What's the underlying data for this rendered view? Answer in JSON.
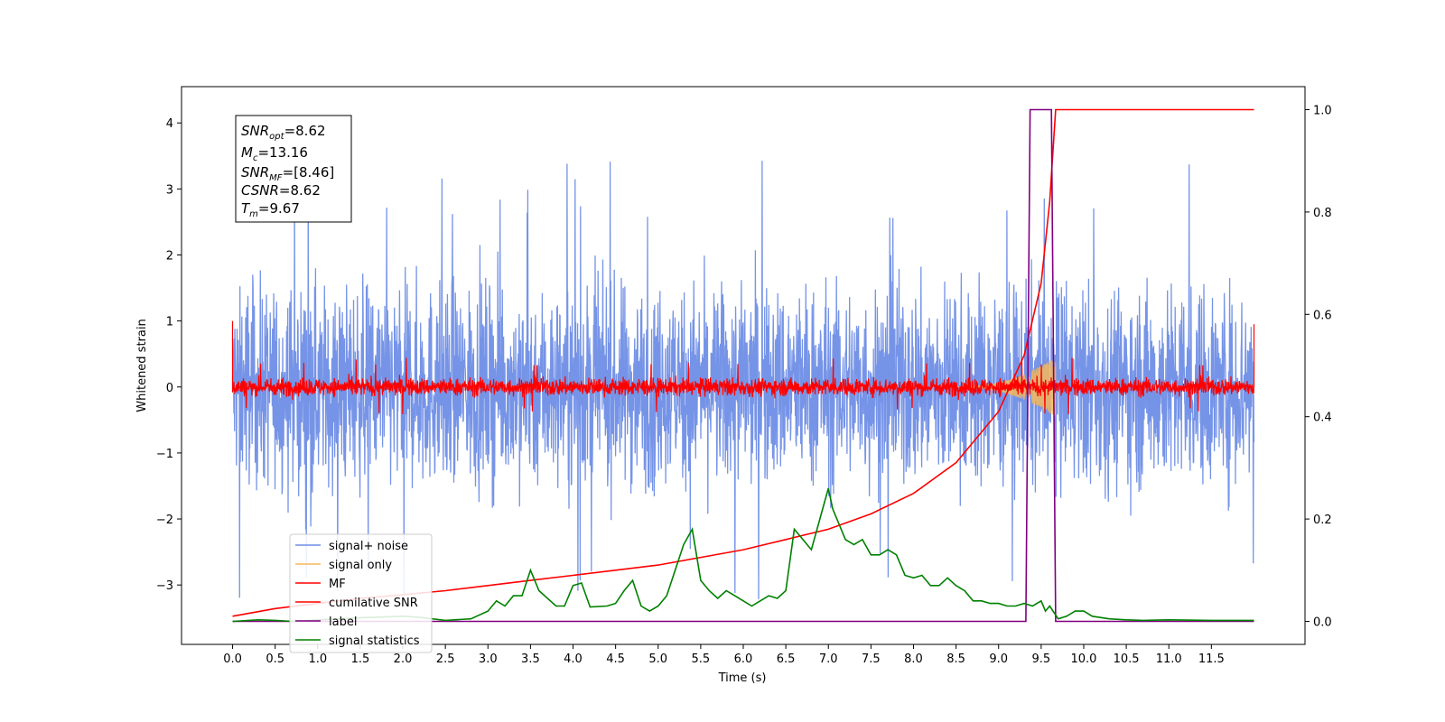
{
  "chart_data": {
    "type": "line",
    "xlabel": "Time (s)",
    "ylabel": "Whitened strain",
    "x_ticks": [
      "0.0",
      "0.5",
      "1.0",
      "1.5",
      "2.0",
      "2.5",
      "3.0",
      "3.5",
      "4.0",
      "4.5",
      "5.0",
      "5.5",
      "6.0",
      "6.5",
      "7.0",
      "7.5",
      "8.0",
      "8.5",
      "9.0",
      "9.5",
      "10.0",
      "10.5",
      "11.0",
      "11.5"
    ],
    "y_ticks_left": [
      "4",
      "3",
      "2",
      "1",
      "0",
      "−1",
      "−2",
      "−3"
    ],
    "y_ticks_right": [
      "1.0",
      "0.8",
      "0.6",
      "0.4",
      "0.2",
      "0.0"
    ],
    "xlim": [
      -0.6,
      12.6
    ],
    "ylim_left": [
      -3.9,
      4.55
    ],
    "ylim_right": [
      -0.045,
      1.045
    ],
    "grid": false,
    "legend_position": "lower-left",
    "annotation": {
      "lines": [
        {
          "sym": "SNR",
          "sub": "opt",
          "val": "=8.62"
        },
        {
          "sym": "M",
          "sub": "c",
          "val": "=13.16"
        },
        {
          "sym": "SNR",
          "sub": "MF",
          "val": "=[8.46]"
        },
        {
          "sym": "CSNR",
          "sub": "",
          "val": "=8.62"
        },
        {
          "sym": "T",
          "sub": "m",
          "val": "=9.67"
        }
      ]
    },
    "series": [
      {
        "name": "signal+ noise",
        "axis": "left",
        "color": "#6f8ee6",
        "style": "noise",
        "x_range": [
          0,
          12
        ],
        "amplitude": 1.35,
        "peak": 3.5
      },
      {
        "name": "signal only",
        "axis": "left",
        "color": "#f5b75c",
        "style": "chirp",
        "x_range": [
          8.5,
          9.67
        ],
        "peak_amplitude": 0.45
      },
      {
        "name": "MF",
        "axis": "left",
        "color": "#ff0000",
        "style": "noise",
        "x_range": [
          0,
          12
        ],
        "amplitude": 0.12,
        "peak": 0.45
      },
      {
        "name": "cumilative SNR",
        "axis": "right",
        "x": [
          0.0,
          0.5,
          1.0,
          1.5,
          2.0,
          2.5,
          3.0,
          3.5,
          4.0,
          4.5,
          5.0,
          5.5,
          6.0,
          6.5,
          7.0,
          7.5,
          8.0,
          8.5,
          9.0,
          9.3,
          9.5,
          9.6,
          9.67,
          12.0
        ],
        "values": [
          0.01,
          0.025,
          0.035,
          0.045,
          0.052,
          0.06,
          0.07,
          0.08,
          0.09,
          0.1,
          0.11,
          0.125,
          0.14,
          0.16,
          0.18,
          0.21,
          0.25,
          0.31,
          0.41,
          0.52,
          0.66,
          0.82,
          1.0,
          1.0
        ],
        "color": "#ff0000"
      },
      {
        "name": "label",
        "axis": "right",
        "x": [
          0.0,
          9.32,
          9.37,
          9.62,
          9.67,
          12.0
        ],
        "values": [
          0.0,
          0.0,
          1.0,
          1.0,
          0.0,
          0.0
        ],
        "color": "#800080"
      },
      {
        "name": "signal statistics",
        "axis": "right",
        "x": [
          0.0,
          0.3,
          0.5,
          0.7,
          1.0,
          1.5,
          2.0,
          2.2,
          2.5,
          2.8,
          3.0,
          3.1,
          3.2,
          3.3,
          3.4,
          3.5,
          3.6,
          3.8,
          3.9,
          4.0,
          4.1,
          4.2,
          4.4,
          4.5,
          4.6,
          4.7,
          4.8,
          4.9,
          5.0,
          5.1,
          5.2,
          5.3,
          5.4,
          5.5,
          5.6,
          5.7,
          5.8,
          5.9,
          6.0,
          6.1,
          6.2,
          6.3,
          6.4,
          6.5,
          6.6,
          6.7,
          6.8,
          6.9,
          7.0,
          7.05,
          7.1,
          7.2,
          7.3,
          7.4,
          7.5,
          7.6,
          7.7,
          7.8,
          7.9,
          8.0,
          8.1,
          8.2,
          8.3,
          8.4,
          8.5,
          8.6,
          8.7,
          8.8,
          8.9,
          9.0,
          9.1,
          9.2,
          9.3,
          9.4,
          9.5,
          9.55,
          9.6,
          9.7,
          9.8,
          9.9,
          10.0,
          10.1,
          10.3,
          10.5,
          10.7,
          11.0,
          11.5,
          12.0
        ],
        "values": [
          0.0,
          0.003,
          0.002,
          0.0,
          0.003,
          0.007,
          0.01,
          0.008,
          0.002,
          0.005,
          0.02,
          0.04,
          0.03,
          0.05,
          0.05,
          0.1,
          0.06,
          0.03,
          0.03,
          0.07,
          0.075,
          0.028,
          0.03,
          0.035,
          0.06,
          0.08,
          0.03,
          0.02,
          0.03,
          0.05,
          0.1,
          0.15,
          0.18,
          0.08,
          0.06,
          0.045,
          0.06,
          0.05,
          0.04,
          0.03,
          0.04,
          0.05,
          0.045,
          0.06,
          0.18,
          0.16,
          0.14,
          0.2,
          0.26,
          0.22,
          0.2,
          0.16,
          0.15,
          0.16,
          0.13,
          0.13,
          0.14,
          0.13,
          0.09,
          0.085,
          0.09,
          0.07,
          0.07,
          0.085,
          0.07,
          0.06,
          0.04,
          0.04,
          0.035,
          0.035,
          0.03,
          0.03,
          0.035,
          0.03,
          0.04,
          0.02,
          0.03,
          0.005,
          0.01,
          0.02,
          0.02,
          0.01,
          0.005,
          0.003,
          0.002,
          0.003,
          0.002,
          0.002
        ],
        "color": "#008000"
      }
    ]
  }
}
